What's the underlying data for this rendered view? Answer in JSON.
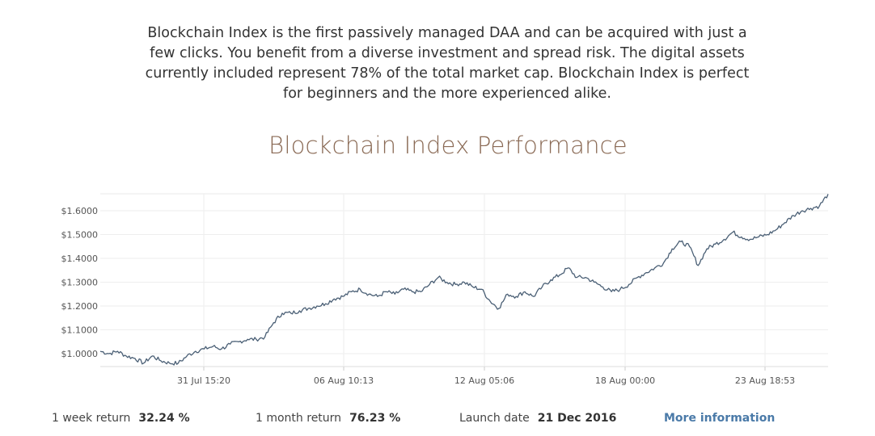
{
  "intro_text": "Blockchain Index is the first passively managed DAA and can be acquired with just a few clicks. You benefit from a diverse investment and spread risk. The digital assets currently included represent 78% of the total market cap. Blockchain Index is perfect for beginners and the more experienced alike.",
  "chart_title": "Blockchain Index Performance",
  "chart_data": {
    "type": "line",
    "title": "Blockchain Index Performance",
    "xlabel": "",
    "ylabel": "",
    "x_ticks": [
      "31 Jul 15:20",
      "06 Aug 10:13",
      "12 Aug 05:06",
      "18 Aug 00:00",
      "23 Aug 18:53"
    ],
    "y_ticks": [
      "$1.0000",
      "$1.1000",
      "$1.2000",
      "$1.3000",
      "$1.4000",
      "$1.5000",
      "$1.6000"
    ],
    "ylim": [
      0.95,
      1.65
    ],
    "grid": true,
    "legend": "none",
    "color": "#4a5f75",
    "series": [
      {
        "x": [
          "29 Jul",
          "29 Jul",
          "30 Jul",
          "30 Jul",
          "30 Jul",
          "31 Jul",
          "31 Jul",
          "31 Jul",
          "01 Aug",
          "01 Aug",
          "01 Aug",
          "02 Aug",
          "02 Aug",
          "02 Aug",
          "03 Aug",
          "03 Aug",
          "03 Aug",
          "04 Aug",
          "04 Aug",
          "04 Aug",
          "05 Aug",
          "05 Aug",
          "05 Aug",
          "05 Aug",
          "06 Aug",
          "06 Aug",
          "06 Aug",
          "07 Aug",
          "07 Aug",
          "07 Aug",
          "08 Aug",
          "08 Aug",
          "08 Aug",
          "09 Aug",
          "09 Aug",
          "09 Aug",
          "10 Aug",
          "10 Aug",
          "10 Aug",
          "11 Aug",
          "11 Aug",
          "11 Aug",
          "12 Aug",
          "12 Aug",
          "12 Aug",
          "12 Aug",
          "13 Aug",
          "13 Aug",
          "13 Aug",
          "14 Aug",
          "14 Aug",
          "14 Aug",
          "15 Aug",
          "15 Aug",
          "15 Aug",
          "16 Aug",
          "16 Aug",
          "16 Aug",
          "17 Aug",
          "17 Aug",
          "17 Aug",
          "18 Aug",
          "18 Aug",
          "18 Aug",
          "18 Aug",
          "19 Aug",
          "19 Aug",
          "19 Aug",
          "20 Aug",
          "20 Aug",
          "20 Aug",
          "21 Aug",
          "21 Aug",
          "21 Aug",
          "22 Aug",
          "22 Aug",
          "22 Aug",
          "23 Aug",
          "23 Aug",
          "23 Aug",
          "24 Aug",
          "24 Aug",
          "24 Aug",
          "25 Aug",
          "25 Aug"
        ],
        "values": [
          1.01,
          1.0,
          1.01,
          0.99,
          0.98,
          0.96,
          0.99,
          0.97,
          0.96,
          0.96,
          0.99,
          1.01,
          1.02,
          1.03,
          1.02,
          1.04,
          1.05,
          1.06,
          1.06,
          1.07,
          1.13,
          1.17,
          1.17,
          1.18,
          1.19,
          1.2,
          1.21,
          1.23,
          1.24,
          1.26,
          1.27,
          1.25,
          1.24,
          1.26,
          1.25,
          1.27,
          1.26,
          1.26,
          1.29,
          1.32,
          1.3,
          1.29,
          1.3,
          1.28,
          1.27,
          1.22,
          1.19,
          1.25,
          1.24,
          1.26,
          1.24,
          1.28,
          1.31,
          1.33,
          1.36,
          1.32,
          1.32,
          1.3,
          1.28,
          1.26,
          1.27,
          1.29,
          1.32,
          1.34,
          1.36,
          1.38,
          1.44,
          1.47,
          1.45,
          1.37,
          1.44,
          1.46,
          1.48,
          1.51,
          1.49,
          1.48,
          1.49,
          1.5,
          1.52,
          1.55,
          1.58,
          1.6,
          1.61,
          1.62,
          1.67
        ]
      }
    ]
  },
  "stats": [
    {
      "label": "1 week return",
      "value": "32.24 %"
    },
    {
      "label": "1 month return",
      "value": "76.23 %"
    },
    {
      "label": "Launch date",
      "value": "21 Dec 2016"
    }
  ],
  "more_link": "More information",
  "colors": {
    "accent_link": "#4a7aa8",
    "title": "#8a6a55",
    "line": "#4a5f75",
    "grid": "#eeeeee"
  }
}
